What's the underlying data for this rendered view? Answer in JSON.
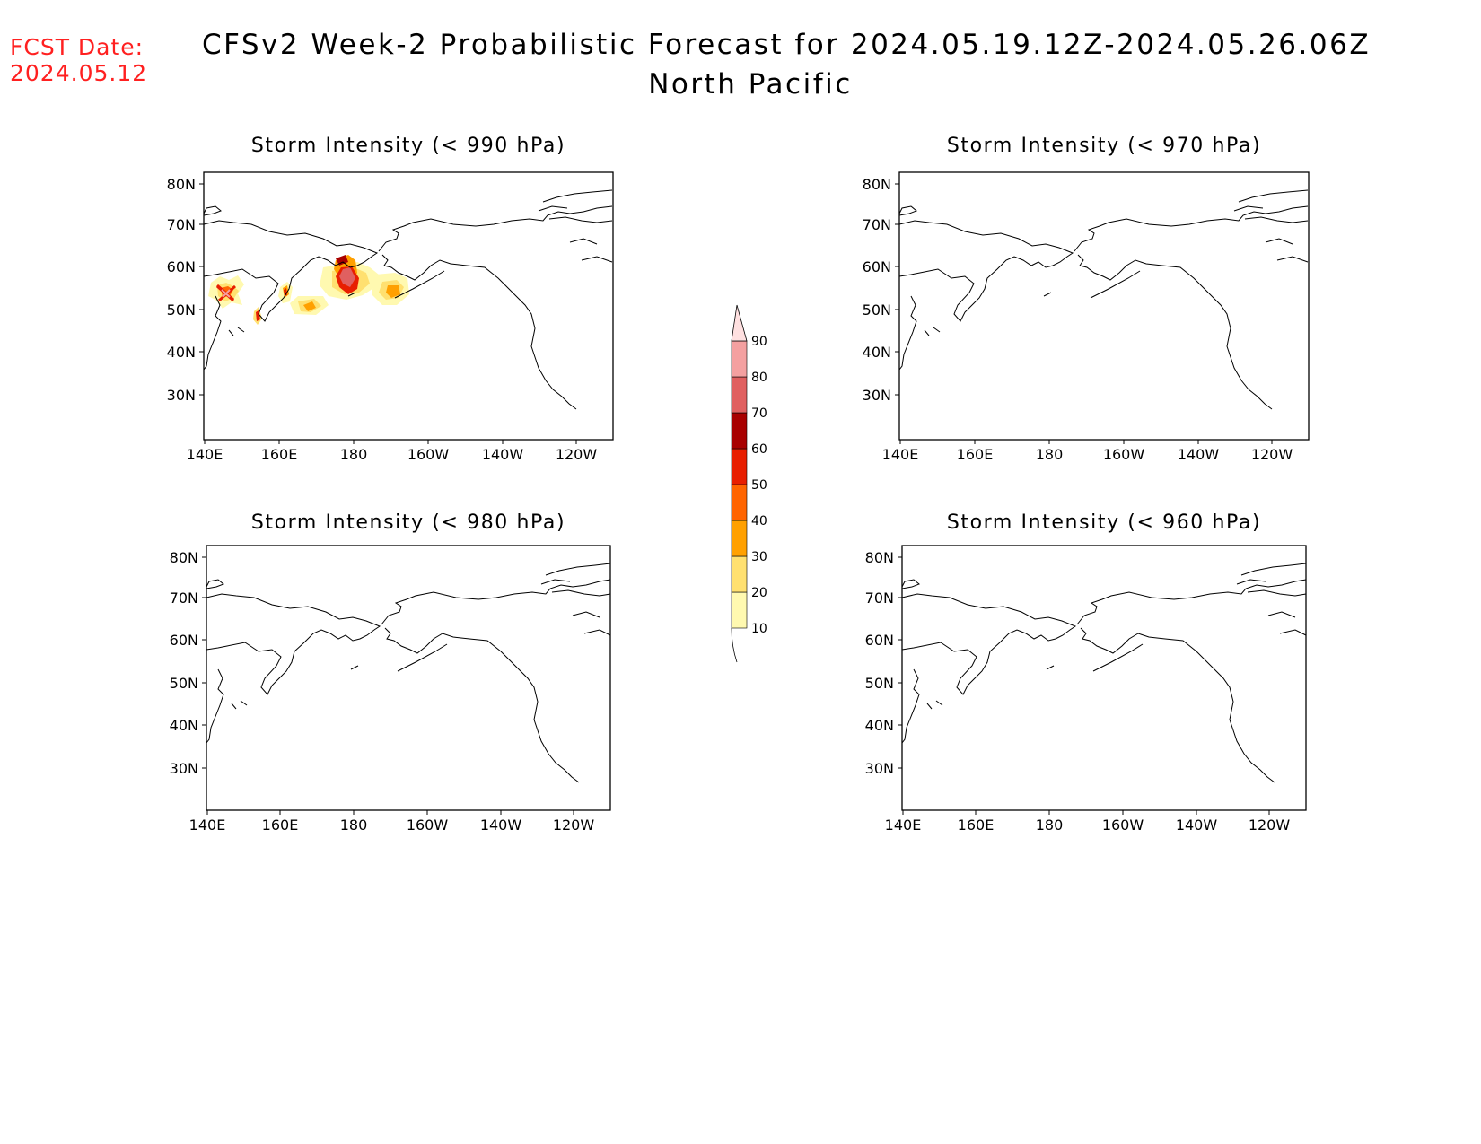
{
  "fcst_label": "FCST Date:",
  "fcst_date": "2024.05.12",
  "title": "CFSv2 Week-2 Probabilistic Forecast for 2024.05.19.12Z-2024.05.26.06Z",
  "region": "North Pacific",
  "lat_ticks": [
    "80N",
    "70N",
    "60N",
    "50N",
    "40N",
    "30N"
  ],
  "lon_ticks": [
    "140E",
    "160E",
    "180",
    "160W",
    "140W",
    "120W"
  ],
  "panels": [
    {
      "title": "Storm Intensity (< 990 hPa)",
      "has_data": true
    },
    {
      "title": "Storm Intensity (< 970 hPa)",
      "has_data": false
    },
    {
      "title": "Storm Intensity (< 980 hPa)",
      "has_data": false
    },
    {
      "title": "Storm Intensity (< 960 hPa)",
      "has_data": false
    }
  ],
  "colorbar": {
    "levels": [
      "10",
      "20",
      "30",
      "40",
      "50",
      "60",
      "70",
      "80",
      "90"
    ],
    "colors": [
      "#fff9b0",
      "#ffe070",
      "#ffa000",
      "#ff6400",
      "#e81e00",
      "#a80000",
      "#e06060",
      "#f4a0a0",
      "#ffe0e0"
    ]
  }
}
